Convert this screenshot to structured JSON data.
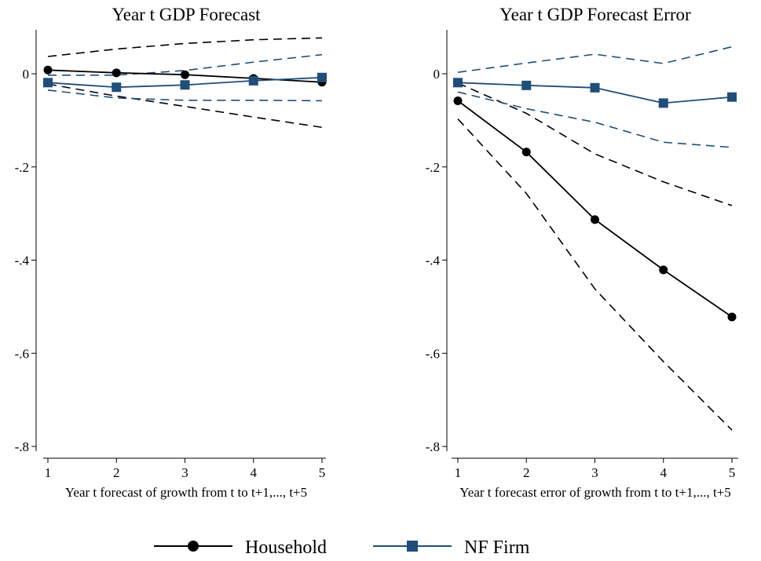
{
  "chart_data": [
    {
      "type": "line",
      "title": "Year t GDP Forecast",
      "xlabel": "Year t forecast of growth from t to t+1,..., t+5",
      "ylabel": "",
      "x": [
        1,
        2,
        3,
        4,
        5
      ],
      "xticks": [
        "1",
        "2",
        "3",
        "4",
        "5"
      ],
      "yticks": [
        "0",
        "-.2",
        "-.4",
        "-.6",
        "-.8"
      ],
      "xlim": [
        1,
        5
      ],
      "ylim": [
        -0.8,
        0.1
      ],
      "grid": false,
      "series": [
        {
          "name": "Household",
          "color": "#000000",
          "marker": "circle",
          "values": [
            0.008,
            0.002,
            -0.002,
            -0.01,
            -0.018
          ]
        },
        {
          "name": "Household CI upper",
          "color": "#000000",
          "style": "dashed",
          "values": [
            0.037,
            0.053,
            0.065,
            0.073,
            0.077
          ]
        },
        {
          "name": "Household CI lower",
          "color": "#000000",
          "style": "dashed",
          "values": [
            -0.022,
            -0.048,
            -0.07,
            -0.093,
            -0.115
          ]
        },
        {
          "name": "NF Firm",
          "color": "#1f4e79",
          "marker": "square",
          "values": [
            -0.019,
            -0.029,
            -0.024,
            -0.015,
            -0.008
          ]
        },
        {
          "name": "NF Firm CI upper",
          "color": "#1f4e79",
          "style": "dashed",
          "values": [
            -0.003,
            -0.003,
            0.007,
            0.025,
            0.041
          ]
        },
        {
          "name": "NF Firm CI lower",
          "color": "#1f4e79",
          "style": "dashed",
          "values": [
            -0.035,
            -0.052,
            -0.057,
            -0.057,
            -0.058
          ]
        }
      ]
    },
    {
      "type": "line",
      "title": "Year t GDP Forecast Error",
      "xlabel": "Year t forecast error of growth from t to t+1,..., t+5",
      "ylabel": "",
      "x": [
        1,
        2,
        3,
        4,
        5
      ],
      "xticks": [
        "1",
        "2",
        "3",
        "4",
        "5"
      ],
      "yticks": [
        "0",
        "-.2",
        "-.4",
        "-.6",
        "-.8"
      ],
      "xlim": [
        1,
        5
      ],
      "ylim": [
        -0.8,
        0.1
      ],
      "grid": false,
      "series": [
        {
          "name": "Household",
          "color": "#000000",
          "marker": "circle",
          "values": [
            -0.058,
            -0.168,
            -0.313,
            -0.421,
            -0.522
          ]
        },
        {
          "name": "Household CI upper",
          "color": "#000000",
          "style": "dashed",
          "values": [
            -0.02,
            -0.085,
            -0.172,
            -0.232,
            -0.283
          ]
        },
        {
          "name": "Household CI lower",
          "color": "#000000",
          "style": "dashed",
          "values": [
            -0.097,
            -0.257,
            -0.462,
            -0.618,
            -0.765
          ]
        },
        {
          "name": "NF Firm",
          "color": "#1f4e79",
          "marker": "square",
          "values": [
            -0.019,
            -0.025,
            -0.03,
            -0.063,
            -0.05
          ]
        },
        {
          "name": "NF Firm CI upper",
          "color": "#1f4e79",
          "style": "dashed",
          "values": [
            0.003,
            0.023,
            0.042,
            0.022,
            0.058
          ]
        },
        {
          "name": "NF Firm CI lower",
          "color": "#1f4e79",
          "style": "dashed",
          "values": [
            -0.039,
            -0.075,
            -0.104,
            -0.147,
            -0.158
          ]
        }
      ]
    }
  ],
  "legend": {
    "position": "bottom",
    "items": [
      {
        "label": "Household",
        "color": "#000000",
        "marker": "circle"
      },
      {
        "label": "NF Firm",
        "color": "#1f4e79",
        "marker": "square"
      }
    ]
  }
}
